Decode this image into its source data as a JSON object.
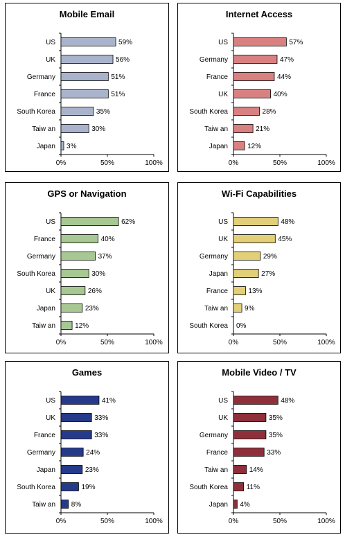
{
  "chart_data": [
    {
      "type": "bar",
      "orientation": "horizontal",
      "title": "Mobile Email",
      "categories": [
        "US",
        "UK",
        "Germany",
        "France",
        "South Korea",
        "Taiw an",
        "Japan"
      ],
      "values": [
        59,
        56,
        51,
        51,
        35,
        30,
        3
      ],
      "value_labels": [
        "59%",
        "56%",
        "51%",
        "51%",
        "35%",
        "30%",
        "3%"
      ],
      "xlim": [
        0,
        100
      ],
      "xticks": [
        "0%",
        "50%",
        "100%"
      ],
      "color": "#A9B4CC"
    },
    {
      "type": "bar",
      "orientation": "horizontal",
      "title": "Internet Access",
      "categories": [
        "US",
        "Germany",
        "France",
        "UK",
        "South Korea",
        "Taiw an",
        "Japan"
      ],
      "values": [
        57,
        47,
        44,
        40,
        28,
        21,
        12
      ],
      "value_labels": [
        "57%",
        "47%",
        "44%",
        "40%",
        "28%",
        "21%",
        "12%"
      ],
      "xlim": [
        0,
        100
      ],
      "xticks": [
        "0%",
        "50%",
        "100%"
      ],
      "color": "#D98080"
    },
    {
      "type": "bar",
      "orientation": "horizontal",
      "title": "GPS or Navigation",
      "categories": [
        "US",
        "France",
        "Germany",
        "South Korea",
        "UK",
        "Japan",
        "Taiw an"
      ],
      "values": [
        62,
        40,
        37,
        30,
        26,
        23,
        12
      ],
      "value_labels": [
        "62%",
        "40%",
        "37%",
        "30%",
        "26%",
        "23%",
        "12%"
      ],
      "xlim": [
        0,
        100
      ],
      "xticks": [
        "0%",
        "50%",
        "100%"
      ],
      "color": "#A7C793"
    },
    {
      "type": "bar",
      "orientation": "horizontal",
      "title": "Wi-Fi Capabilities",
      "categories": [
        "US",
        "UK",
        "Germany",
        "Japan",
        "France",
        "Taiw an",
        "South Korea"
      ],
      "values": [
        48,
        45,
        29,
        27,
        13,
        9,
        0
      ],
      "value_labels": [
        "48%",
        "45%",
        "29%",
        "27%",
        "13%",
        "9%",
        "0%"
      ],
      "xlim": [
        0,
        100
      ],
      "xticks": [
        "0%",
        "50%",
        "100%"
      ],
      "color": "#E2CF78"
    },
    {
      "type": "bar",
      "orientation": "horizontal",
      "title": "Games",
      "categories": [
        "US",
        "UK",
        "France",
        "Germany",
        "Japan",
        "South Korea",
        "Taiw an"
      ],
      "values": [
        41,
        33,
        33,
        24,
        23,
        19,
        8
      ],
      "value_labels": [
        "41%",
        "33%",
        "33%",
        "24%",
        "23%",
        "19%",
        "8%"
      ],
      "xlim": [
        0,
        100
      ],
      "xticks": [
        "0%",
        "50%",
        "100%"
      ],
      "color": "#263A8C"
    },
    {
      "type": "bar",
      "orientation": "horizontal",
      "title": "Mobile Video / TV",
      "categories": [
        "US",
        "UK",
        "Germany",
        "France",
        "Taiw an",
        "South Korea",
        "Japan"
      ],
      "values": [
        48,
        35,
        35,
        33,
        14,
        11,
        4
      ],
      "value_labels": [
        "48%",
        "35%",
        "35%",
        "33%",
        "14%",
        "11%",
        "4%"
      ],
      "xlim": [
        0,
        100
      ],
      "xticks": [
        "0%",
        "50%",
        "100%"
      ],
      "color": "#8E2F3A"
    }
  ]
}
